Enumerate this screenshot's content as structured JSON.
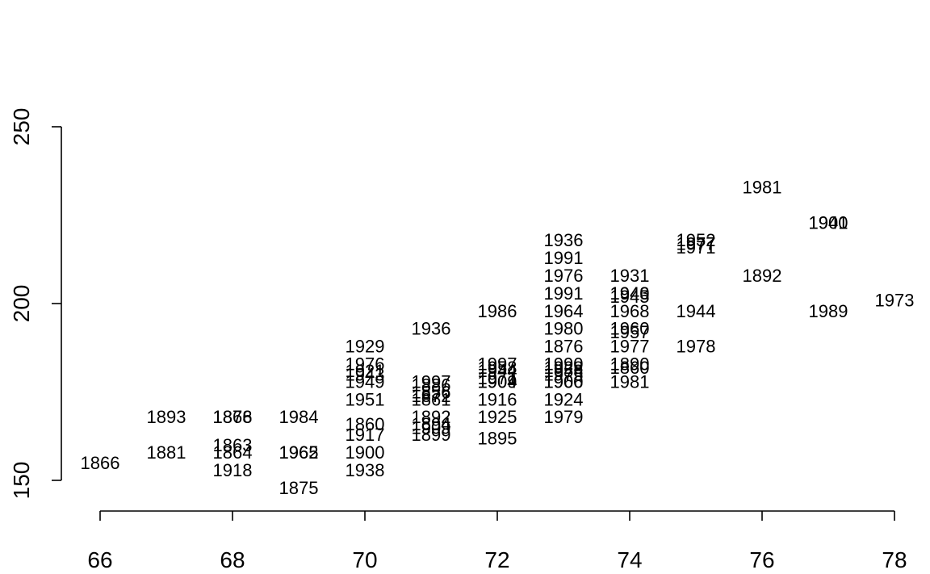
{
  "chart_data": {
    "type": "scatter",
    "marker": "text-labels",
    "title": "",
    "xlabel": "",
    "ylabel": "",
    "xlim": [
      66,
      78
    ],
    "ylim": [
      140,
      260
    ],
    "x_ticks": [
      66,
      68,
      70,
      72,
      74,
      76,
      78
    ],
    "y_ticks": [
      150,
      200,
      250
    ],
    "x_tick_labels": [
      "66",
      "68",
      "70",
      "72",
      "74",
      "76",
      "78"
    ],
    "y_tick_labels": [
      "150",
      "200",
      "250"
    ],
    "points": [
      {
        "x": 66,
        "y": 155,
        "label": "1866"
      },
      {
        "x": 67,
        "y": 168,
        "label": "1893"
      },
      {
        "x": 67,
        "y": 158,
        "label": "1881"
      },
      {
        "x": 68,
        "y": 168,
        "label": "1876"
      },
      {
        "x": 68,
        "y": 168,
        "label": "1868"
      },
      {
        "x": 68,
        "y": 160,
        "label": "1863"
      },
      {
        "x": 68,
        "y": 158,
        "label": "1864"
      },
      {
        "x": 68,
        "y": 153,
        "label": "1918"
      },
      {
        "x": 69,
        "y": 168,
        "label": "1984"
      },
      {
        "x": 69,
        "y": 158,
        "label": "1965"
      },
      {
        "x": 69,
        "y": 158,
        "label": "1962"
      },
      {
        "x": 69,
        "y": 148,
        "label": "1875"
      },
      {
        "x": 70,
        "y": 188,
        "label": "1929"
      },
      {
        "x": 70,
        "y": 183,
        "label": "1976"
      },
      {
        "x": 70,
        "y": 181,
        "label": "1921"
      },
      {
        "x": 70,
        "y": 180,
        "label": "1943"
      },
      {
        "x": 70,
        "y": 178,
        "label": "1949"
      },
      {
        "x": 70,
        "y": 173,
        "label": "1951"
      },
      {
        "x": 70,
        "y": 166,
        "label": "1860"
      },
      {
        "x": 70,
        "y": 163,
        "label": "1917"
      },
      {
        "x": 70,
        "y": 158,
        "label": "1900"
      },
      {
        "x": 70,
        "y": 153,
        "label": "1938"
      },
      {
        "x": 71,
        "y": 193,
        "label": "1936"
      },
      {
        "x": 71,
        "y": 178,
        "label": "1997"
      },
      {
        "x": 71,
        "y": 177,
        "label": "1886"
      },
      {
        "x": 71,
        "y": 175,
        "label": "1856"
      },
      {
        "x": 71,
        "y": 174,
        "label": "1872"
      },
      {
        "x": 71,
        "y": 173,
        "label": "1861"
      },
      {
        "x": 71,
        "y": 168,
        "label": "1892"
      },
      {
        "x": 71,
        "y": 166,
        "label": "1894"
      },
      {
        "x": 71,
        "y": 165,
        "label": "1909"
      },
      {
        "x": 71,
        "y": 163,
        "label": "1899"
      },
      {
        "x": 72,
        "y": 198,
        "label": "1986"
      },
      {
        "x": 72,
        "y": 183,
        "label": "1997"
      },
      {
        "x": 72,
        "y": 182,
        "label": "1958"
      },
      {
        "x": 72,
        "y": 181,
        "label": "1944"
      },
      {
        "x": 72,
        "y": 179,
        "label": "1971"
      },
      {
        "x": 72,
        "y": 178,
        "label": "1909"
      },
      {
        "x": 72,
        "y": 178,
        "label": "1904"
      },
      {
        "x": 72,
        "y": 173,
        "label": "1916"
      },
      {
        "x": 72,
        "y": 168,
        "label": "1925"
      },
      {
        "x": 72,
        "y": 162,
        "label": "1895"
      },
      {
        "x": 73,
        "y": 218,
        "label": "1936"
      },
      {
        "x": 73,
        "y": 213,
        "label": "1991"
      },
      {
        "x": 73,
        "y": 208,
        "label": "1976"
      },
      {
        "x": 73,
        "y": 203,
        "label": "1991"
      },
      {
        "x": 73,
        "y": 198,
        "label": "1964"
      },
      {
        "x": 73,
        "y": 193,
        "label": "1980"
      },
      {
        "x": 73,
        "y": 188,
        "label": "1876"
      },
      {
        "x": 73,
        "y": 183,
        "label": "1990"
      },
      {
        "x": 73,
        "y": 182,
        "label": "1928"
      },
      {
        "x": 73,
        "y": 181,
        "label": "1958"
      },
      {
        "x": 73,
        "y": 180,
        "label": "1975"
      },
      {
        "x": 73,
        "y": 178,
        "label": "1960"
      },
      {
        "x": 73,
        "y": 178,
        "label": "1906"
      },
      {
        "x": 73,
        "y": 173,
        "label": "1924"
      },
      {
        "x": 73,
        "y": 168,
        "label": "1979"
      },
      {
        "x": 74,
        "y": 208,
        "label": "1931"
      },
      {
        "x": 74,
        "y": 203,
        "label": "1940"
      },
      {
        "x": 74,
        "y": 203,
        "label": "1943"
      },
      {
        "x": 74,
        "y": 202,
        "label": "1945"
      },
      {
        "x": 74,
        "y": 198,
        "label": "1968"
      },
      {
        "x": 74,
        "y": 193,
        "label": "1960"
      },
      {
        "x": 74,
        "y": 192,
        "label": "1957"
      },
      {
        "x": 74,
        "y": 188,
        "label": "1977"
      },
      {
        "x": 74,
        "y": 183,
        "label": "1890"
      },
      {
        "x": 74,
        "y": 182,
        "label": "1860"
      },
      {
        "x": 74,
        "y": 178,
        "label": "1981"
      },
      {
        "x": 75,
        "y": 218,
        "label": "1952"
      },
      {
        "x": 75,
        "y": 217,
        "label": "1977"
      },
      {
        "x": 75,
        "y": 216,
        "label": "1971"
      },
      {
        "x": 75,
        "y": 198,
        "label": "1944"
      },
      {
        "x": 75,
        "y": 188,
        "label": "1978"
      },
      {
        "x": 76,
        "y": 233,
        "label": "1981"
      },
      {
        "x": 76,
        "y": 208,
        "label": "1892"
      },
      {
        "x": 77,
        "y": 223,
        "label": "1940"
      },
      {
        "x": 77,
        "y": 223,
        "label": "1901"
      },
      {
        "x": 77,
        "y": 198,
        "label": "1989"
      },
      {
        "x": 78,
        "y": 201,
        "label": "1973"
      }
    ]
  }
}
